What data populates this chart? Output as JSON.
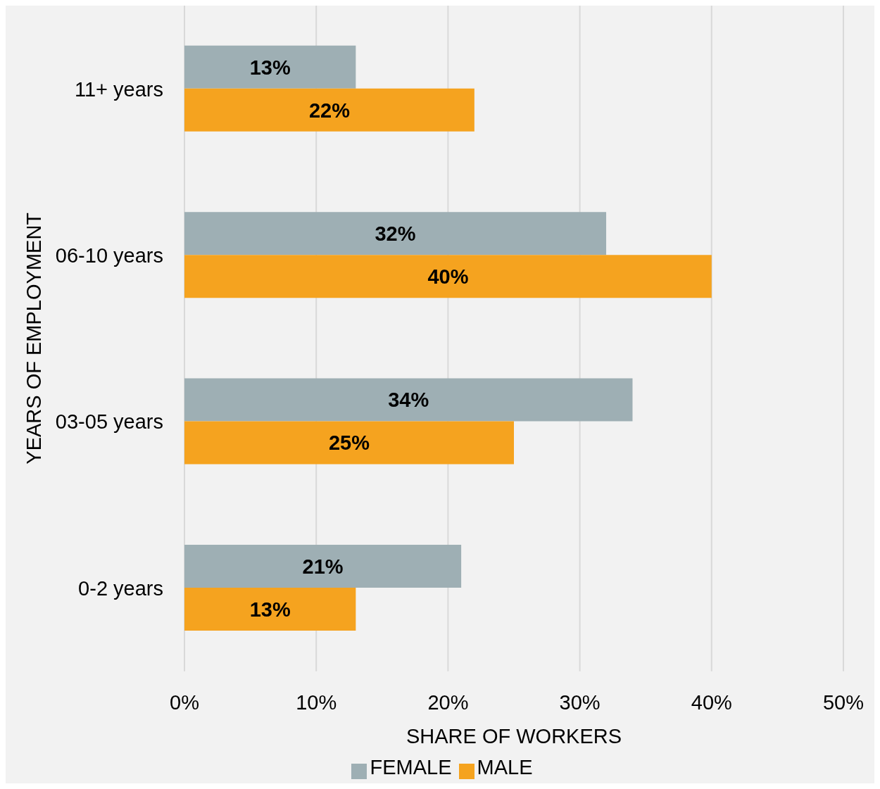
{
  "chart_data": {
    "type": "bar",
    "orientation": "horizontal",
    "xlabel": "SHARE OF WORKERS",
    "ylabel": "YEARS OF EMPLOYMENT",
    "categories": [
      "11+ years",
      "06-10 years",
      "03-05 years",
      "0-2 years"
    ],
    "series": [
      {
        "name": "FEMALE",
        "color": "#9eafb4",
        "values": [
          13,
          32,
          34,
          21
        ],
        "value_labels": [
          "13%",
          "32%",
          "34%",
          "21%"
        ]
      },
      {
        "name": "MALE",
        "color": "#f5a31f",
        "values": [
          22,
          40,
          25,
          13
        ],
        "value_labels": [
          "22%",
          "40%",
          "25%",
          "13%"
        ]
      }
    ],
    "xlim": [
      0,
      50
    ],
    "xticks": [
      {
        "value": 0,
        "label": "0%"
      },
      {
        "value": 10,
        "label": "10%"
      },
      {
        "value": 20,
        "label": "20%"
      },
      {
        "value": 30,
        "label": "30%"
      },
      {
        "value": 40,
        "label": "40%"
      },
      {
        "value": 50,
        "label": "50%"
      }
    ],
    "grid": "x",
    "legend": "bottom"
  }
}
